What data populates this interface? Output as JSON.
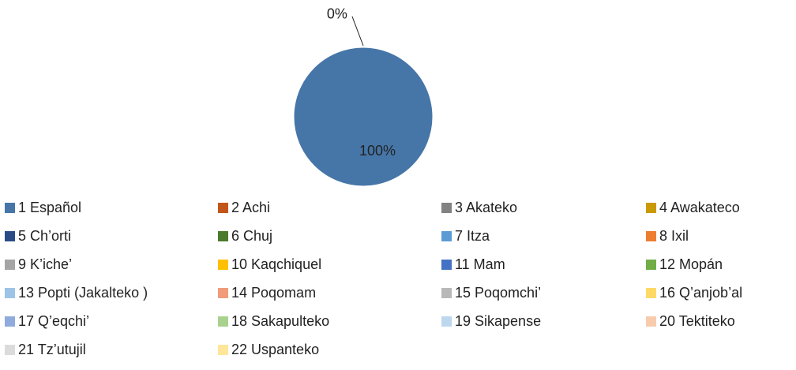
{
  "chart_data": {
    "type": "pie",
    "categories": [
      "1 Español",
      "2 Achi",
      "3 Akateko",
      "4 Awakateco",
      "5 Ch’orti",
      "6 Chuj",
      "7 Itza",
      "8 Ixil",
      "9 K’iche’",
      "10 Kaqchiquel",
      "11 Mam",
      "12 Mopán",
      "13 Popti (Jakalteko )",
      "14 Poqomam",
      "15 Poqomchi’",
      "16 Q’anjob’al",
      "17 Q’eqchi’",
      "18 Sakapulteko",
      "19 Sikapense",
      "20 Tektiteko",
      "21 Tz’utujil",
      "22 Uspanteko"
    ],
    "values": [
      100,
      0,
      0,
      0,
      0,
      0,
      0,
      0,
      0,
      0,
      0,
      0,
      0,
      0,
      0,
      0,
      0,
      0,
      0,
      0,
      0,
      0
    ],
    "value_labels": [
      "100%",
      "0%",
      null,
      null,
      null,
      null,
      null,
      null,
      null,
      null,
      null,
      null,
      null,
      null,
      null,
      null,
      null,
      null,
      null,
      null,
      null,
      null
    ],
    "colors": [
      "#4676a8",
      "#c2561a",
      "#828282",
      "#c99a06",
      "#2a4c86",
      "#4a7a2c",
      "#5b9bd5",
      "#ed7d31",
      "#a5a5a5",
      "#ffc000",
      "#4472c4",
      "#70ad47",
      "#9dc3e6",
      "#f19b7a",
      "#b8b8b8",
      "#ffd966",
      "#8faadc",
      "#a9d18e",
      "#bdd7ee",
      "#f8cbad",
      "#dbdbdb",
      "#ffe699"
    ],
    "legend": "bottom"
  }
}
